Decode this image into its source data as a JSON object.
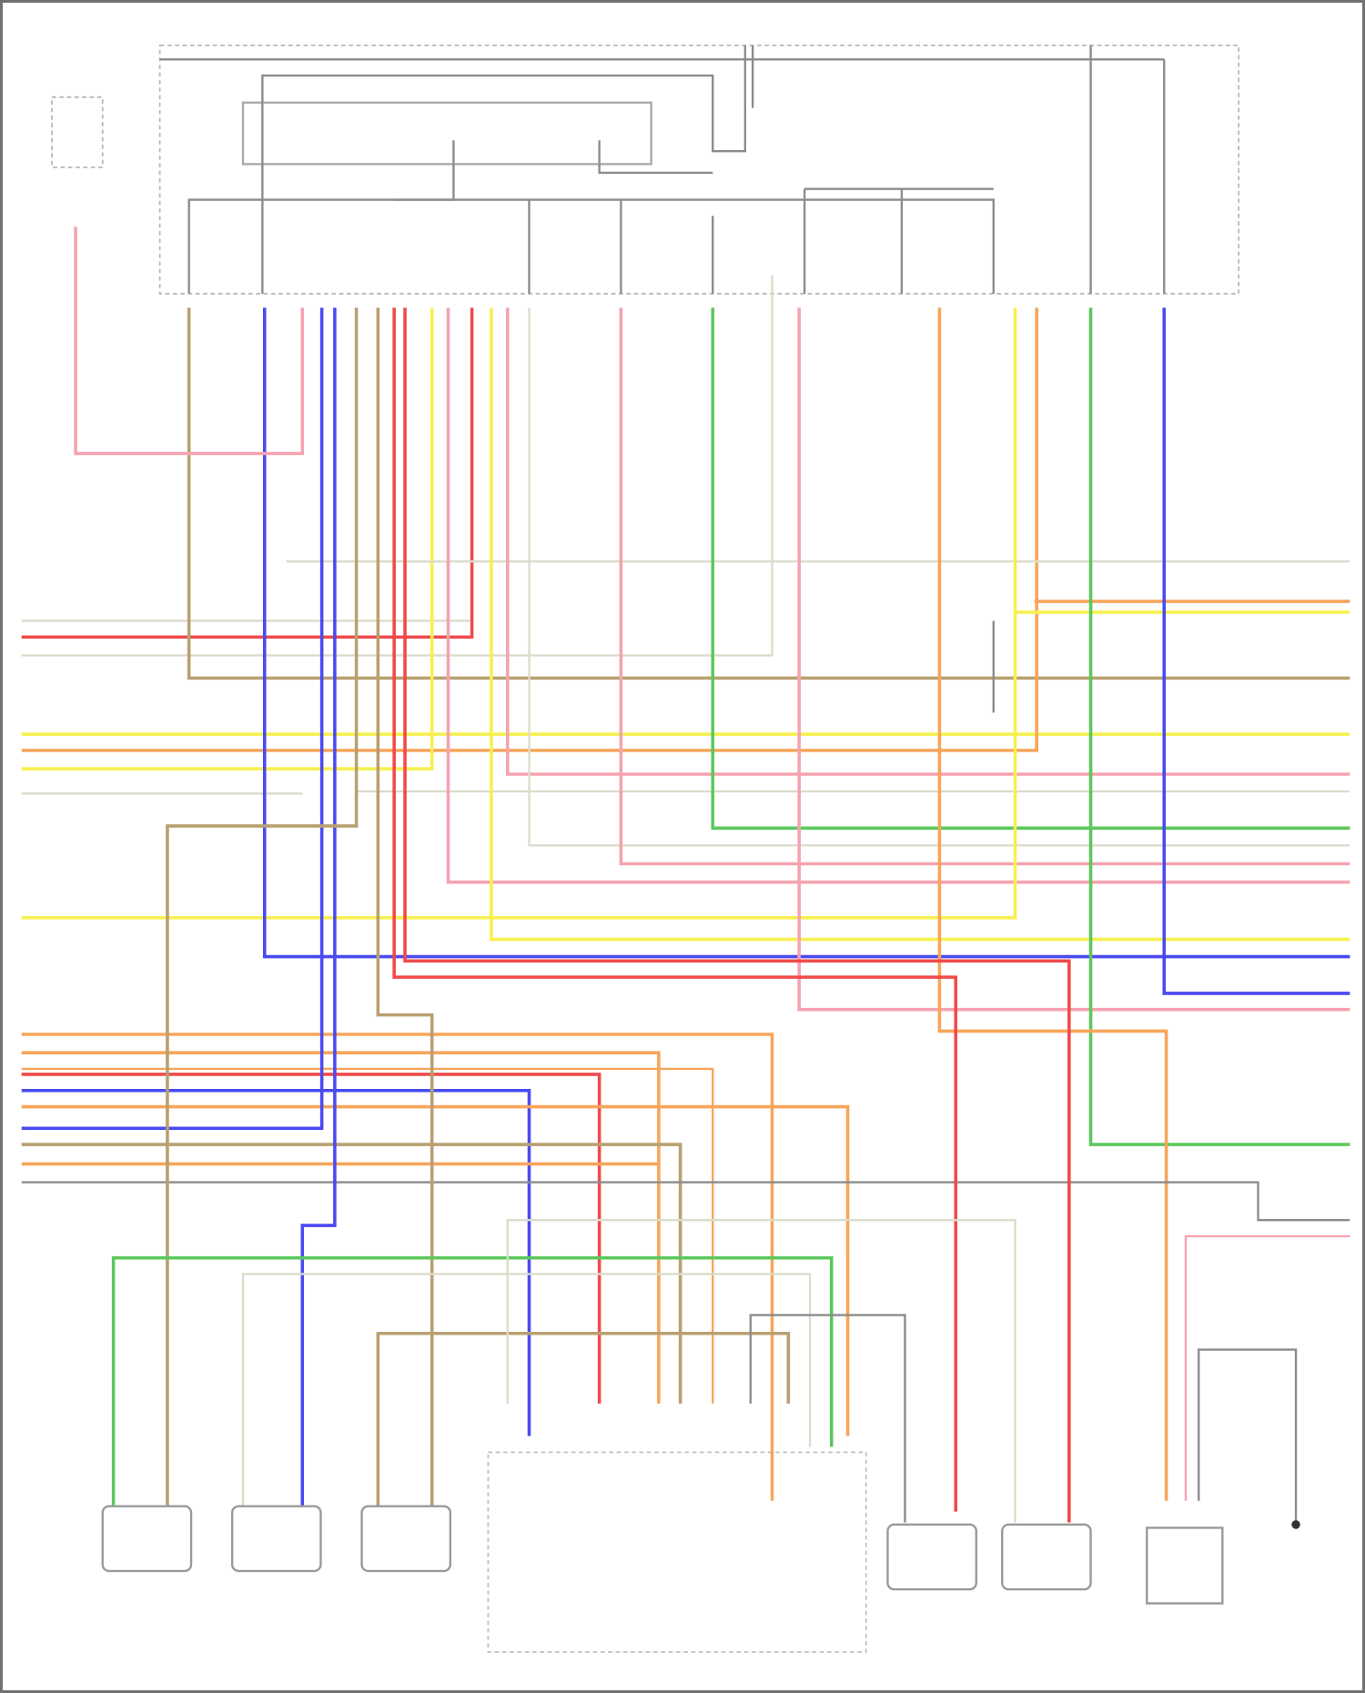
{
  "diagram": {
    "type": "wiring-schematic",
    "wire_colors": {
      "red": "#f04a4a",
      "pink": "#f5a3b0",
      "orange": "#f7a55a",
      "yellow": "#f7f050",
      "tan": "#b8a070",
      "blue": "#4a4af0",
      "green": "#5cc85c",
      "gray": "#8c8c8c",
      "light": "#dcdccc"
    },
    "frame_color": "#707070",
    "module_border_color": "#b0b0b0"
  }
}
